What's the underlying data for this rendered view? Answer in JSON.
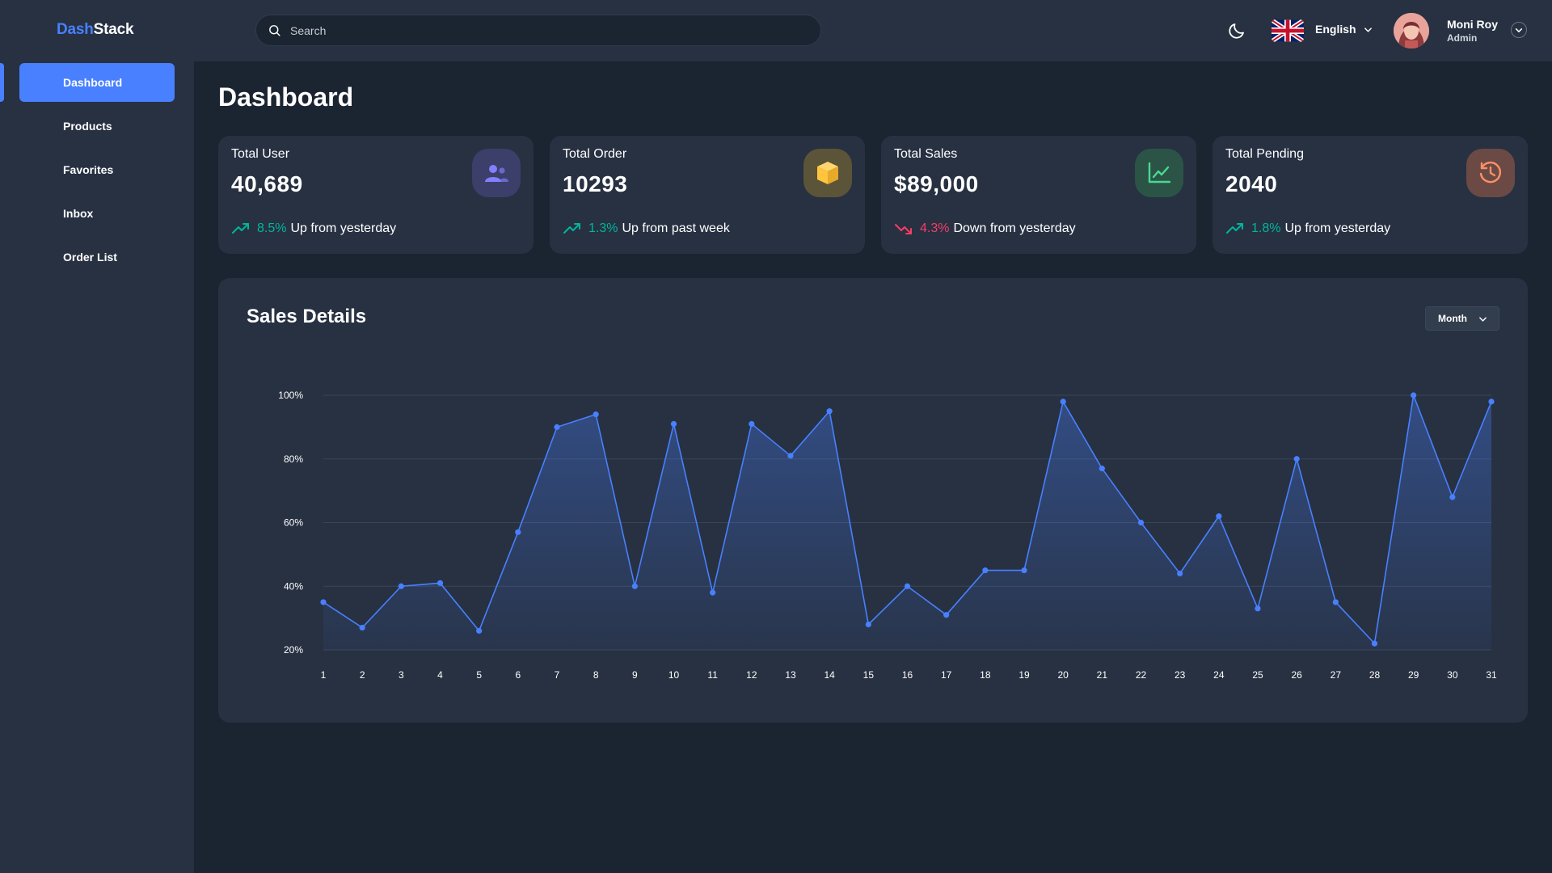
{
  "app": {
    "brand_part1": "Dash",
    "brand_part2": "Stack"
  },
  "sidebar": {
    "items": [
      {
        "label": "Dashboard",
        "active": true
      },
      {
        "label": "Products",
        "active": false
      },
      {
        "label": "Favorites",
        "active": false
      },
      {
        "label": "Inbox",
        "active": false
      },
      {
        "label": "Order List",
        "active": false
      }
    ]
  },
  "header": {
    "search_placeholder": "Search",
    "language": "English",
    "user_name": "Moni Roy",
    "user_role": "Admin",
    "icons": [
      "search-icon",
      "moon-icon",
      "uk-flag-icon",
      "chevron-down-icon",
      "avatar"
    ]
  },
  "page": {
    "title": "Dashboard"
  },
  "stats": [
    {
      "label": "Total User",
      "value": "40,689",
      "pct": "8.5%",
      "trend_text": "Up from yesterday",
      "direction": "up",
      "icon": "users-icon",
      "icon_color": "#8280ff",
      "icon_bg": "#3b3f6a"
    },
    {
      "label": "Total Order",
      "value": "10293",
      "pct": "1.3%",
      "trend_text": "Up from past week",
      "direction": "up",
      "icon": "box-icon",
      "icon_color": "#fec53d",
      "icon_bg": "#5c5439"
    },
    {
      "label": "Total Sales",
      "value": "$89,000",
      "pct": "4.3%",
      "trend_text": "Down from yesterday",
      "direction": "down",
      "icon": "line-chart-icon",
      "icon_color": "#4ad991",
      "icon_bg": "#2b5447"
    },
    {
      "label": "Total Pending",
      "value": "2040",
      "pct": "1.8%",
      "trend_text": "Up from yesterday",
      "direction": "up",
      "icon": "history-icon",
      "icon_color": "#ff9066",
      "icon_bg": "#6b4a45"
    }
  ],
  "colors": {
    "accent": "#4880ff",
    "up": "#00b69b",
    "down": "#f93c65",
    "background": "#1b2431",
    "panel": "#273142"
  },
  "sales": {
    "title": "Sales Details",
    "period_label": "Month"
  },
  "chart_data": {
    "type": "area",
    "title": "Sales Details",
    "xlabel": "",
    "ylabel": "",
    "x": [
      1,
      2,
      3,
      4,
      5,
      6,
      7,
      8,
      9,
      10,
      11,
      12,
      13,
      14,
      15,
      16,
      17,
      18,
      19,
      20,
      21,
      22,
      23,
      24,
      25,
      26,
      27,
      28,
      29,
      30,
      31
    ],
    "y_tick_labels": [
      "20%",
      "40%",
      "60%",
      "80%",
      "100%"
    ],
    "ylim": [
      20,
      100
    ],
    "grid": true,
    "series": [
      {
        "color": "#4880ff",
        "values": [
          35,
          27,
          40,
          41,
          26,
          57,
          90,
          94,
          40,
          91,
          38,
          91,
          81,
          95,
          28,
          40,
          31,
          45,
          45,
          98,
          77,
          60,
          44,
          62,
          33,
          80,
          35,
          22,
          100,
          68,
          98
        ]
      }
    ]
  }
}
